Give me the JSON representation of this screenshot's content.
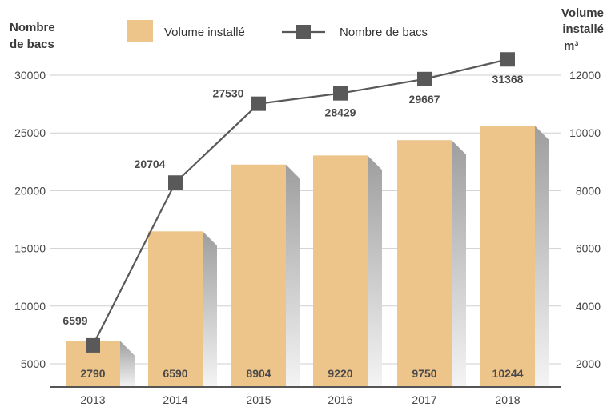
{
  "chart_data": {
    "type": "bar",
    "categories": [
      "2013",
      "2014",
      "2015",
      "2016",
      "2017",
      "2018"
    ],
    "left_axis": {
      "title_line1": "Nombre",
      "title_line2": "de bacs",
      "range": [
        2500,
        32000
      ],
      "ticks": [
        5000,
        10000,
        15000,
        20000,
        25000,
        30000
      ]
    },
    "right_axis": {
      "title_line1": "Volume",
      "title_line2": "installé",
      "title_line3": "m³",
      "range": [
        1000,
        12800
      ],
      "ticks": [
        2000,
        4000,
        6000,
        8000,
        10000,
        12000
      ]
    },
    "series": [
      {
        "name": "Volume installé",
        "type": "bar",
        "axis": "right",
        "values": [
          2790,
          6590,
          8904,
          9220,
          9750,
          10244
        ],
        "color": "#EDC48A"
      },
      {
        "name": "Nombre de bacs",
        "type": "line",
        "axis": "left",
        "values": [
          6599,
          20704,
          27530,
          28429,
          29667,
          31368
        ],
        "color": "#595959"
      }
    ],
    "grid": true,
    "legend": "top"
  }
}
